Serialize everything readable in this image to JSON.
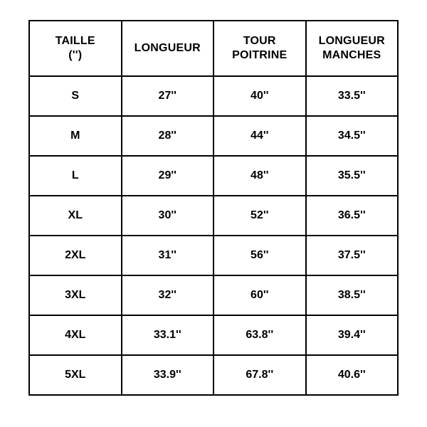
{
  "size_chart": {
    "type": "table",
    "border_color": "#000000",
    "background_color": "#ffffff",
    "text_color": "#000000",
    "header_font_weight": 800,
    "cell_font_weight": 700,
    "header_fontsize": 16,
    "cell_fontsize": 16,
    "columns": [
      {
        "line1": "TAILLE",
        "line2": "('')"
      },
      {
        "line1": "LONGUEUR",
        "line2": ""
      },
      {
        "line1": "TOUR",
        "line2": "POITRINE"
      },
      {
        "line1": "LONGUEUR",
        "line2": "MANCHES"
      }
    ],
    "rows": [
      [
        "S",
        "27''",
        "40''",
        "33.5''"
      ],
      [
        "M",
        "28''",
        "44''",
        "34.5''"
      ],
      [
        "L",
        "29''",
        "48''",
        "35.5''"
      ],
      [
        "XL",
        "30''",
        "52''",
        "36.5''"
      ],
      [
        "2XL",
        "31''",
        "56''",
        "37.5''"
      ],
      [
        "3XL",
        "32''",
        "60''",
        "38.5''"
      ],
      [
        "4XL",
        "33.1''",
        "63.8''",
        "39.4''"
      ],
      [
        "5XL",
        "33.9''",
        "67.8''",
        "40.6''"
      ]
    ]
  }
}
